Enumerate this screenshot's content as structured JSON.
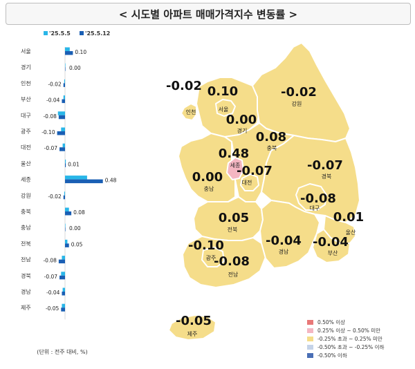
{
  "title": "< 시도별 아파트 매매가격지수 변동률 >",
  "colors": {
    "prev": "#29b6e8",
    "curr": "#1a5fb4",
    "map_fill": "#f5dd8a",
    "map_stroke": "#ffffff",
    "sejong_fill": "#f4b6c2",
    "legend": [
      "#e87878",
      "#f4b6c2",
      "#f5dd8a",
      "#c5d3e8",
      "#4a6fb5"
    ]
  },
  "chart_data": {
    "type": "bar",
    "orientation": "horizontal",
    "categories": [
      "서울",
      "경기",
      "인천",
      "부산",
      "대구",
      "광주",
      "대전",
      "울산",
      "세종",
      "강원",
      "충북",
      "충남",
      "전북",
      "전남",
      "경북",
      "경남",
      "제주"
    ],
    "series": [
      {
        "name": "'25.5.5",
        "values": [
          0.06,
          0.0,
          -0.01,
          -0.02,
          -0.09,
          -0.05,
          -0.03,
          0.01,
          0.28,
          -0.01,
          0.05,
          0.0,
          0.03,
          -0.04,
          -0.05,
          -0.03,
          -0.04
        ]
      },
      {
        "name": "'25.5.12",
        "values": [
          0.1,
          0.0,
          -0.02,
          -0.04,
          -0.08,
          -0.1,
          -0.07,
          0.01,
          0.48,
          -0.02,
          0.08,
          0.0,
          0.05,
          -0.08,
          -0.07,
          -0.04,
          -0.05
        ]
      }
    ],
    "data_labels": [
      "0.10",
      "0.00",
      "-0.02",
      "-0.04",
      "-0.08",
      "-0.10",
      "-0.07",
      "0.01",
      "0.48",
      "-0.02",
      "0.08",
      "0.00",
      "0.05",
      "-0.08",
      "-0.07",
      "-0.04",
      "-0.05"
    ],
    "unit_note": "(단위 : 전주 대비, %)",
    "legend_position": "top"
  },
  "map": {
    "regions": [
      {
        "name": "인천",
        "value": "-0.02"
      },
      {
        "name": "서울",
        "value": "0.10"
      },
      {
        "name": "강원",
        "value": "-0.02"
      },
      {
        "name": "경기",
        "value": "0.00"
      },
      {
        "name": "충북",
        "value": "0.08"
      },
      {
        "name": "세종",
        "value": "0.48"
      },
      {
        "name": "대전",
        "value": "-0.07"
      },
      {
        "name": "충남",
        "value": "0.00"
      },
      {
        "name": "경북",
        "value": "-0.07"
      },
      {
        "name": "대구",
        "value": "-0.08"
      },
      {
        "name": "전북",
        "value": "0.05"
      },
      {
        "name": "울산",
        "value": "0.01"
      },
      {
        "name": "광주",
        "value": "-0.10"
      },
      {
        "name": "경남",
        "value": "-0.04"
      },
      {
        "name": "부산",
        "value": "-0.04"
      },
      {
        "name": "전남",
        "value": "-0.08"
      },
      {
        "name": "제주",
        "value": "-0.05"
      }
    ],
    "legend": [
      "0.50% 이상",
      "0.25% 이상 ~ 0.50% 미만",
      "-0.25% 초과 ~ 0.25% 미만",
      "-0.50% 초과 ~ -0.25% 이하",
      "-0.50% 이하"
    ]
  }
}
